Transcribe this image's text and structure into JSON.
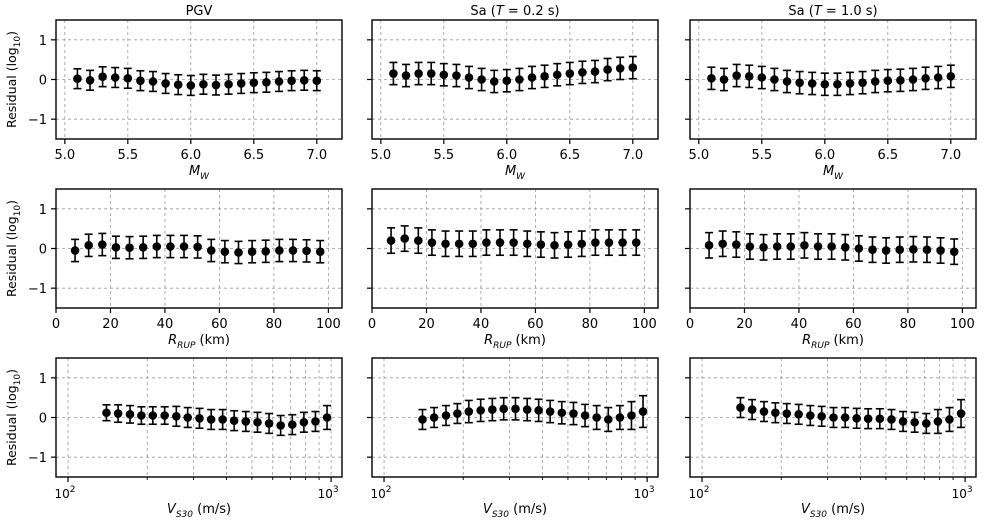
{
  "figure": {
    "column_titles": [
      "PGV",
      "Sa (T = 0.2 s)",
      "Sa (T = 1.0 s)"
    ],
    "row_ylabel": "Residual (log10)",
    "row_xlabels": [
      "MW",
      "RRUP (km)",
      "VS30 (m/s)"
    ]
  },
  "chart_data": [
    {
      "id": "pgv-mw",
      "type": "errorbar",
      "title": "PGV",
      "xlabel": "M_W",
      "ylabel": "Residual (log10)",
      "xlim": [
        4.93,
        7.2
      ],
      "ylim": [
        -1.5,
        1.5
      ],
      "x_scale": "linear",
      "xticks": [
        5.0,
        5.5,
        6.0,
        6.5,
        7.0
      ],
      "xtick_labels": [
        "5.0",
        "5.5",
        "6.0",
        "6.5",
        "7.0"
      ],
      "yticks": [
        -1,
        0,
        1
      ],
      "ytick_labels": [
        "−1",
        "0",
        "1"
      ],
      "grid": true,
      "x": [
        5.1,
        5.2,
        5.3,
        5.4,
        5.5,
        5.6,
        5.7,
        5.8,
        5.9,
        6.0,
        6.1,
        6.2,
        6.3,
        6.4,
        6.5,
        6.6,
        6.7,
        6.8,
        6.9,
        7.0
      ],
      "y": [
        0.02,
        -0.02,
        0.07,
        0.05,
        0.03,
        -0.03,
        -0.05,
        -0.1,
        -0.13,
        -0.15,
        -0.12,
        -0.14,
        -0.12,
        -0.1,
        -0.08,
        -0.07,
        -0.05,
        -0.03,
        -0.02,
        -0.03
      ],
      "err": [
        0.25,
        0.25,
        0.25,
        0.25,
        0.25,
        0.25,
        0.25,
        0.25,
        0.25,
        0.25,
        0.25,
        0.25,
        0.25,
        0.25,
        0.25,
        0.25,
        0.25,
        0.25,
        0.25,
        0.25
      ]
    },
    {
      "id": "sa02-mw",
      "type": "errorbar",
      "title": "Sa (T = 0.2 s)",
      "xlabel": "M_W",
      "ylabel": "",
      "xlim": [
        4.93,
        7.2
      ],
      "ylim": [
        -1.5,
        1.5
      ],
      "x_scale": "linear",
      "xticks": [
        5.0,
        5.5,
        6.0,
        6.5,
        7.0
      ],
      "xtick_labels": [
        "5.0",
        "5.5",
        "6.0",
        "6.5",
        "7.0"
      ],
      "yticks": [
        -1,
        0,
        1
      ],
      "ytick_labels": [
        "",
        "",
        ""
      ],
      "grid": true,
      "x": [
        5.1,
        5.2,
        5.3,
        5.4,
        5.5,
        5.6,
        5.7,
        5.8,
        5.9,
        6.0,
        6.1,
        6.2,
        6.3,
        6.4,
        6.5,
        6.6,
        6.7,
        6.8,
        6.9,
        7.0
      ],
      "y": [
        0.15,
        0.1,
        0.15,
        0.15,
        0.12,
        0.1,
        0.05,
        0.0,
        -0.05,
        -0.03,
        0.0,
        0.05,
        0.08,
        0.12,
        0.15,
        0.18,
        0.2,
        0.25,
        0.28,
        0.3
      ],
      "err": [
        0.28,
        0.28,
        0.28,
        0.28,
        0.28,
        0.28,
        0.28,
        0.28,
        0.28,
        0.28,
        0.28,
        0.28,
        0.28,
        0.28,
        0.28,
        0.28,
        0.28,
        0.28,
        0.28,
        0.28
      ]
    },
    {
      "id": "sa10-mw",
      "type": "errorbar",
      "title": "Sa (T = 1.0 s)",
      "xlabel": "M_W",
      "ylabel": "",
      "xlim": [
        4.93,
        7.2
      ],
      "ylim": [
        -1.5,
        1.5
      ],
      "x_scale": "linear",
      "xticks": [
        5.0,
        5.5,
        6.0,
        6.5,
        7.0
      ],
      "xtick_labels": [
        "5.0",
        "5.5",
        "6.0",
        "6.5",
        "7.0"
      ],
      "yticks": [
        -1,
        0,
        1
      ],
      "ytick_labels": [
        "",
        "",
        ""
      ],
      "grid": true,
      "x": [
        5.1,
        5.2,
        5.3,
        5.4,
        5.5,
        5.6,
        5.7,
        5.8,
        5.9,
        6.0,
        6.1,
        6.2,
        6.3,
        6.4,
        6.5,
        6.6,
        6.7,
        6.8,
        6.9,
        7.0
      ],
      "y": [
        0.03,
        0.0,
        0.1,
        0.08,
        0.05,
        0.0,
        -0.05,
        -0.08,
        -0.1,
        -0.12,
        -0.12,
        -0.1,
        -0.08,
        -0.05,
        -0.03,
        -0.02,
        0.0,
        0.03,
        0.05,
        0.08
      ],
      "err": [
        0.28,
        0.28,
        0.28,
        0.28,
        0.28,
        0.28,
        0.28,
        0.28,
        0.28,
        0.28,
        0.28,
        0.28,
        0.28,
        0.28,
        0.28,
        0.28,
        0.28,
        0.28,
        0.28,
        0.28
      ]
    },
    {
      "id": "pgv-rrup",
      "type": "errorbar",
      "title": "",
      "xlabel": "R_RUP (km)",
      "ylabel": "Residual (log10)",
      "xlim": [
        0,
        105
      ],
      "ylim": [
        -1.5,
        1.5
      ],
      "x_scale": "linear",
      "xticks": [
        0,
        20,
        40,
        60,
        80,
        100
      ],
      "xtick_labels": [
        "0",
        "20",
        "40",
        "60",
        "80",
        "100"
      ],
      "yticks": [
        -1,
        0,
        1
      ],
      "ytick_labels": [
        "−1",
        "0",
        "1"
      ],
      "grid": true,
      "x": [
        7,
        12,
        17,
        22,
        27,
        32,
        37,
        42,
        47,
        52,
        57,
        62,
        67,
        72,
        77,
        82,
        87,
        92,
        97
      ],
      "y": [
        -0.05,
        0.08,
        0.1,
        0.03,
        0.02,
        0.03,
        0.05,
        0.05,
        0.05,
        0.04,
        -0.05,
        -0.08,
        -0.1,
        -0.08,
        -0.07,
        -0.05,
        -0.05,
        -0.06,
        -0.08
      ],
      "err": [
        0.28,
        0.28,
        0.28,
        0.28,
        0.28,
        0.28,
        0.28,
        0.28,
        0.28,
        0.28,
        0.28,
        0.28,
        0.28,
        0.28,
        0.28,
        0.28,
        0.28,
        0.28,
        0.28
      ]
    },
    {
      "id": "sa02-rrup",
      "type": "errorbar",
      "title": "",
      "xlabel": "R_RUP (km)",
      "ylabel": "",
      "xlim": [
        0,
        105
      ],
      "ylim": [
        -1.5,
        1.5
      ],
      "x_scale": "linear",
      "xticks": [
        0,
        20,
        40,
        60,
        80,
        100
      ],
      "xtick_labels": [
        "0",
        "20",
        "40",
        "60",
        "80",
        "100"
      ],
      "yticks": [
        -1,
        0,
        1
      ],
      "ytick_labels": [
        "",
        "",
        ""
      ],
      "grid": true,
      "x": [
        7,
        12,
        17,
        22,
        27,
        32,
        37,
        42,
        47,
        52,
        57,
        62,
        67,
        72,
        77,
        82,
        87,
        92,
        97
      ],
      "y": [
        0.2,
        0.25,
        0.2,
        0.15,
        0.12,
        0.12,
        0.12,
        0.15,
        0.15,
        0.15,
        0.12,
        0.1,
        0.08,
        0.1,
        0.12,
        0.15,
        0.15,
        0.15,
        0.15
      ],
      "err": [
        0.32,
        0.32,
        0.32,
        0.32,
        0.32,
        0.32,
        0.32,
        0.32,
        0.32,
        0.32,
        0.32,
        0.32,
        0.32,
        0.32,
        0.32,
        0.32,
        0.32,
        0.32,
        0.32
      ]
    },
    {
      "id": "sa10-rrup",
      "type": "errorbar",
      "title": "",
      "xlabel": "R_RUP (km)",
      "ylabel": "",
      "xlim": [
        0,
        105
      ],
      "ylim": [
        -1.5,
        1.5
      ],
      "x_scale": "linear",
      "xticks": [
        0,
        20,
        40,
        60,
        80,
        100
      ],
      "xtick_labels": [
        "0",
        "20",
        "40",
        "60",
        "80",
        "100"
      ],
      "yticks": [
        -1,
        0,
        1
      ],
      "ytick_labels": [
        "",
        "",
        ""
      ],
      "grid": true,
      "x": [
        7,
        12,
        17,
        22,
        27,
        32,
        37,
        42,
        47,
        52,
        57,
        62,
        67,
        72,
        77,
        82,
        87,
        92,
        97
      ],
      "y": [
        0.08,
        0.12,
        0.1,
        0.05,
        0.03,
        0.05,
        0.05,
        0.08,
        0.05,
        0.05,
        0.03,
        0.0,
        -0.03,
        -0.05,
        -0.03,
        -0.02,
        -0.03,
        -0.05,
        -0.08
      ],
      "err": [
        0.32,
        0.32,
        0.32,
        0.32,
        0.32,
        0.32,
        0.32,
        0.32,
        0.32,
        0.32,
        0.32,
        0.32,
        0.32,
        0.32,
        0.32,
        0.32,
        0.32,
        0.32,
        0.32
      ]
    },
    {
      "id": "pgv-vs30",
      "type": "errorbar",
      "title": "",
      "xlabel": "V_S30 (m/s)",
      "ylabel": "Residual (log10)",
      "xlim": [
        90,
        1100
      ],
      "ylim": [
        -1.5,
        1.5
      ],
      "x_scale": "log",
      "xticks": [
        100,
        1000
      ],
      "xtick_labels": [
        "10^2",
        "10^3"
      ],
      "yticks": [
        -1,
        0,
        1
      ],
      "ytick_labels": [
        "−1",
        "0",
        "1"
      ],
      "grid": true,
      "x": [
        140,
        155,
        172,
        190,
        210,
        233,
        258,
        285,
        316,
        350,
        387,
        428,
        474,
        525,
        581,
        643,
        712,
        788,
        872,
        965
      ],
      "y": [
        0.12,
        0.1,
        0.08,
        0.05,
        0.05,
        0.05,
        0.03,
        0.0,
        -0.02,
        -0.05,
        -0.05,
        -0.08,
        -0.1,
        -0.12,
        -0.15,
        -0.2,
        -0.18,
        -0.12,
        -0.1,
        0.0
      ],
      "err": [
        0.2,
        0.22,
        0.22,
        0.22,
        0.22,
        0.22,
        0.25,
        0.25,
        0.25,
        0.25,
        0.25,
        0.25,
        0.25,
        0.25,
        0.25,
        0.25,
        0.25,
        0.25,
        0.25,
        0.3
      ]
    },
    {
      "id": "sa02-vs30",
      "type": "errorbar",
      "title": "",
      "xlabel": "V_S30 (m/s)",
      "ylabel": "",
      "xlim": [
        90,
        1100
      ],
      "ylim": [
        -1.5,
        1.5
      ],
      "x_scale": "log",
      "xticks": [
        100,
        1000
      ],
      "xtick_labels": [
        "10^2",
        "10^3"
      ],
      "yticks": [
        -1,
        0,
        1
      ],
      "ytick_labels": [
        "",
        "",
        ""
      ],
      "grid": true,
      "x": [
        140,
        155,
        172,
        190,
        210,
        233,
        258,
        285,
        316,
        350,
        387,
        428,
        474,
        525,
        581,
        643,
        712,
        788,
        872,
        965
      ],
      "y": [
        -0.05,
        0.0,
        0.05,
        0.1,
        0.15,
        0.18,
        0.2,
        0.22,
        0.22,
        0.2,
        0.18,
        0.15,
        0.12,
        0.1,
        0.05,
        0.0,
        -0.05,
        0.0,
        0.05,
        0.15
      ],
      "err": [
        0.25,
        0.25,
        0.25,
        0.25,
        0.28,
        0.28,
        0.28,
        0.28,
        0.28,
        0.28,
        0.28,
        0.28,
        0.28,
        0.28,
        0.28,
        0.3,
        0.3,
        0.3,
        0.35,
        0.4
      ]
    },
    {
      "id": "sa10-vs30",
      "type": "errorbar",
      "title": "",
      "xlabel": "V_S30 (m/s)",
      "ylabel": "",
      "xlim": [
        90,
        1100
      ],
      "ylim": [
        -1.5,
        1.5
      ],
      "x_scale": "log",
      "xticks": [
        100,
        1000
      ],
      "xtick_labels": [
        "10^2",
        "10^3"
      ],
      "yticks": [
        -1,
        0,
        1
      ],
      "ytick_labels": [
        "",
        "",
        ""
      ],
      "grid": true,
      "x": [
        140,
        155,
        172,
        190,
        210,
        233,
        258,
        285,
        316,
        350,
        387,
        428,
        474,
        525,
        581,
        643,
        712,
        788,
        872,
        965
      ],
      "y": [
        0.25,
        0.2,
        0.15,
        0.12,
        0.1,
        0.08,
        0.05,
        0.03,
        0.0,
        0.0,
        -0.02,
        -0.03,
        -0.03,
        -0.05,
        -0.1,
        -0.12,
        -0.15,
        -0.1,
        -0.05,
        0.1
      ],
      "err": [
        0.25,
        0.25,
        0.25,
        0.25,
        0.25,
        0.25,
        0.25,
        0.25,
        0.25,
        0.25,
        0.25,
        0.25,
        0.25,
        0.25,
        0.25,
        0.25,
        0.25,
        0.3,
        0.3,
        0.35
      ]
    }
  ]
}
